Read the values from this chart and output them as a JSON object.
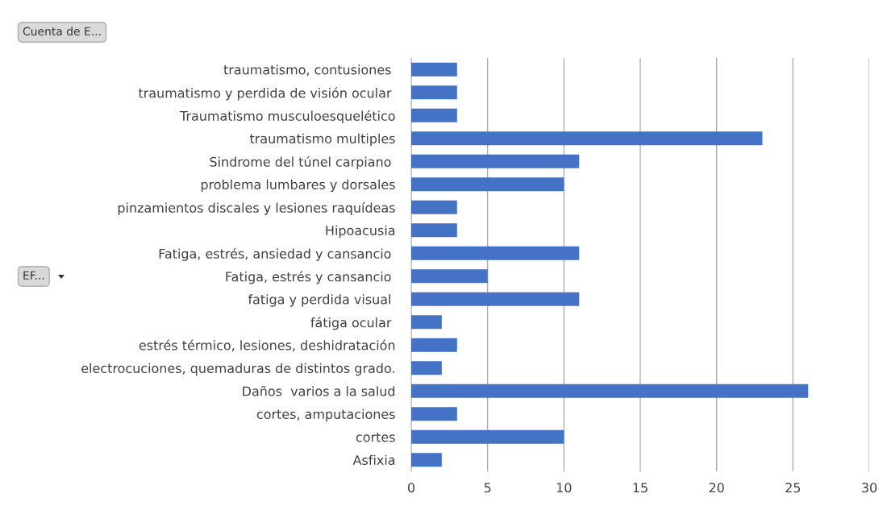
{
  "chart_data": {
    "type": "bar",
    "orientation": "horizontal",
    "categories": [
      "traumatismo, contusiones ",
      "traumatismo y perdida de visión ocular ",
      "Traumatismo musculoesquelético",
      "traumatismo multiples",
      "Sindrome del túnel carpiano ",
      "problema lumbares y dorsales",
      "pinzamientos discales y lesiones raquídeas",
      "Hipoacusia",
      "Fatiga, estrés, ansiedad y cansancio ",
      "Fatiga, estrés y cansancio ",
      "fatiga y perdida visual ",
      "fátiga ocular ",
      "estrés térmico, lesiones, deshidratación",
      "electrocuciones, quemaduras de distintos grado.",
      "Daños  varios a la salud",
      "cortes, amputaciones",
      "cortes",
      "Asfixia"
    ],
    "values": [
      3,
      3,
      3,
      23,
      11,
      10,
      3,
      3,
      11,
      5,
      11,
      2,
      3,
      2,
      26,
      3,
      10,
      2
    ],
    "color": "#4472c4",
    "xlim": [
      0,
      30
    ],
    "xticks": [
      0,
      5,
      10,
      15,
      20,
      25,
      30
    ],
    "grid": "x",
    "annotations": [
      "Cuenta de E...",
      "EF..."
    ]
  }
}
